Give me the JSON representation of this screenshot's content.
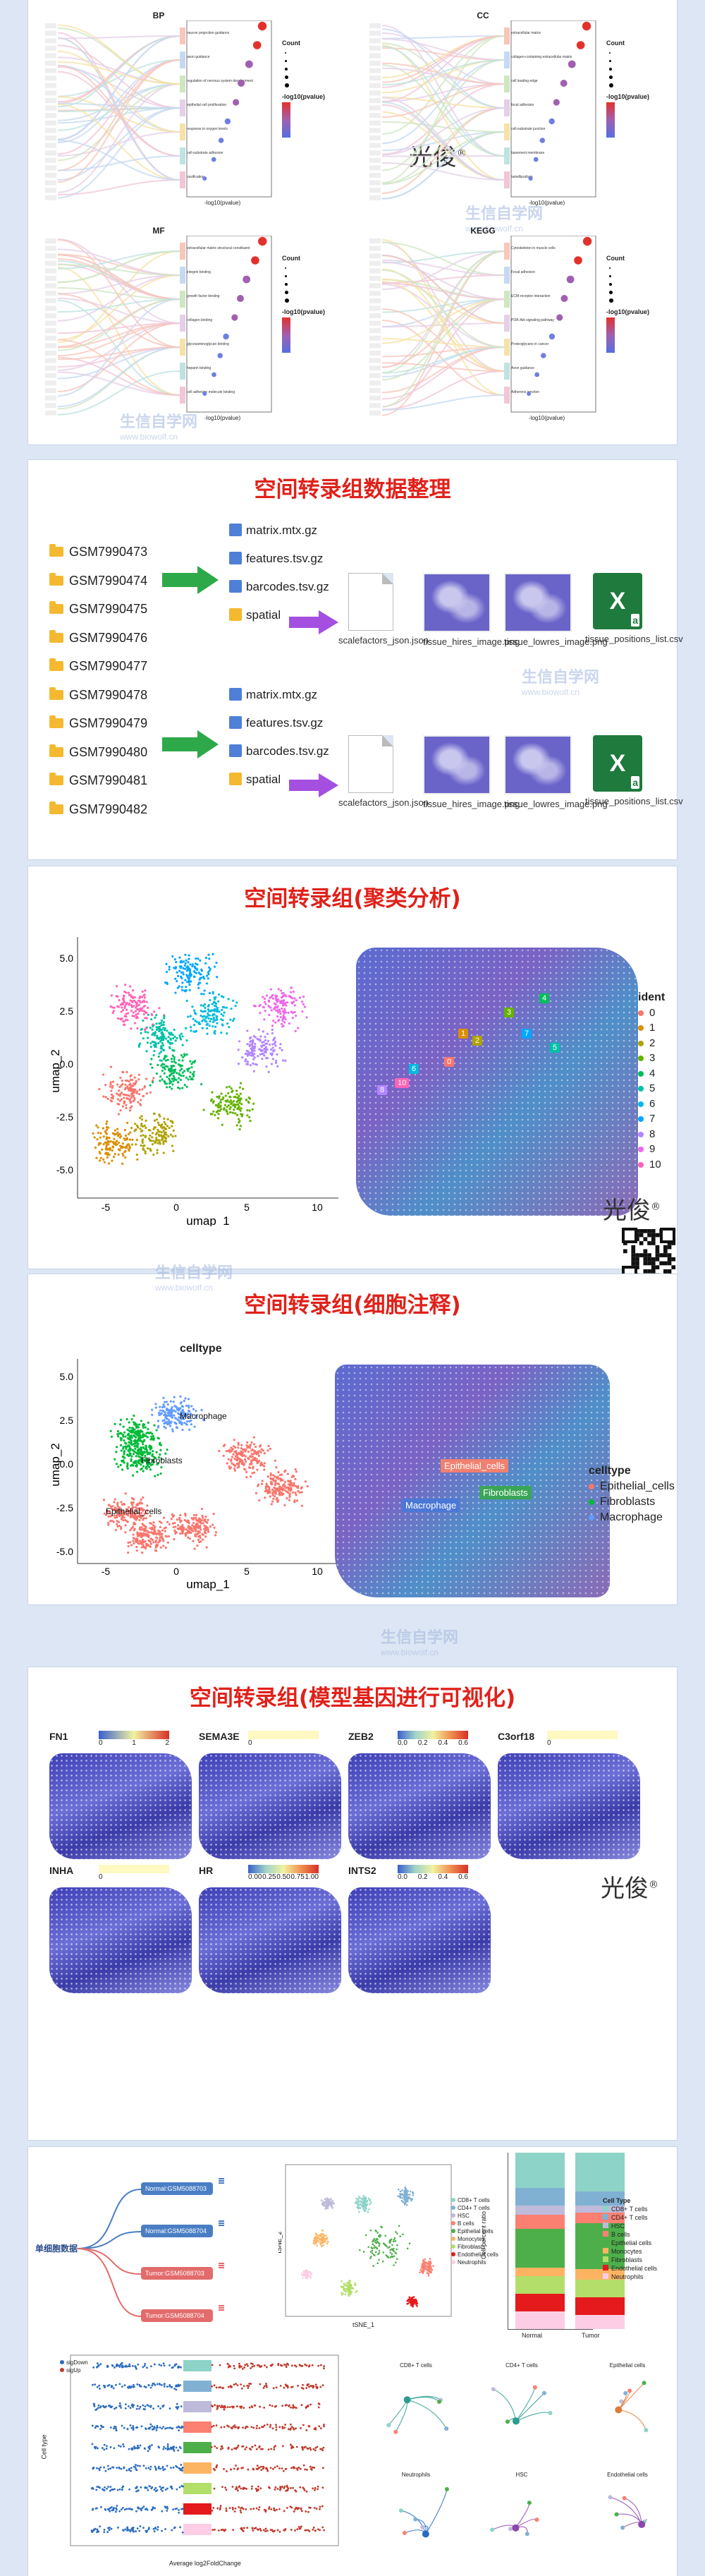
{
  "enrichment": {
    "panels": [
      {
        "id": "bp",
        "label": "BP",
        "terms": [
          "neuron projection guidance",
          "axon guidance",
          "regulation of nervous system development",
          "epithelial cell proliferation",
          "response to oxygen levels",
          "cell-substrate adhesion",
          "ossification"
        ]
      },
      {
        "id": "cc",
        "label": "CC",
        "terms": [
          "extracellular matrix",
          "collagen-containing extracellular matrix",
          "cell leading edge",
          "focal adhesion",
          "cell-substrate junction",
          "basement membrane",
          "lamellipodium"
        ]
      },
      {
        "id": "mf",
        "label": "MF",
        "terms": [
          "extracellular matrix structural constituent",
          "integrin binding",
          "growth factor binding",
          "collagen binding",
          "glycosaminoglycan binding",
          "heparin binding",
          "cell adhesion molecule binding"
        ]
      },
      {
        "id": "kegg",
        "label": "KEGG",
        "terms": [
          "Cytoskeleton in muscle cells",
          "Focal adhesion",
          "ECM-receptor interaction",
          "PI3K-Akt signaling pathway",
          "Proteoglycans in cancer",
          "Axon guidance",
          "Adherens junction"
        ]
      }
    ],
    "legend_count": "Count",
    "legend_p": "-log10(pvalue)",
    "xlabel": "-log10(pvalue)"
  },
  "watermark": {
    "name": "生信自学网",
    "url": "www.biowolf.cn"
  },
  "signature": {
    "text": "光俊",
    "mark": "®"
  },
  "section_data": {
    "title": "空间转录组数据整理",
    "samples": [
      "GSM7990473",
      "GSM7990474",
      "GSM7990475",
      "GSM7990476",
      "GSM7990477",
      "GSM7990478",
      "GSM7990479",
      "GSM7990480",
      "GSM7990481",
      "GSM7990482"
    ],
    "files": [
      "matrix.mtx.gz",
      "features.tsv.gz",
      "barcodes.tsv.gz",
      "spatial"
    ],
    "spatial_files": [
      "scalefactors_json.json",
      "tissue_hires_image.png",
      "tissue_lowres_image.png",
      "tissue_positions_list.csv"
    ],
    "xls_badge": "a"
  },
  "section_cluster": {
    "title": "空间转录组(聚类分析)",
    "xlabel": "umap_1",
    "ylabel": "umap_2",
    "xticks": [
      "-5",
      "0",
      "5",
      "10"
    ],
    "yticks": [
      "5.0",
      "2.5",
      "0.0",
      "-2.5",
      "-5.0"
    ],
    "legend_title": "ident",
    "idents": [
      "0",
      "1",
      "2",
      "3",
      "4",
      "5",
      "6",
      "7",
      "8",
      "9",
      "10"
    ],
    "ident_colors": [
      "#f8766d",
      "#db8e00",
      "#aea200",
      "#64b200",
      "#00bd5c",
      "#00c1a7",
      "#00bade",
      "#00a6ff",
      "#b385ff",
      "#ef67eb",
      "#ff63b6"
    ]
  },
  "section_celltype": {
    "title": "空间转录组(细胞注释)",
    "plot_title": "celltype",
    "xlabel": "umap_1",
    "ylabel": "umap_2",
    "xticks": [
      "-5",
      "0",
      "5",
      "10"
    ],
    "yticks": [
      "5.0",
      "2.5",
      "0.0",
      "-2.5",
      "-5.0"
    ],
    "legend_title": "celltype",
    "types": [
      "Epithelial_cells",
      "Fibroblasts",
      "Macrophage"
    ],
    "type_colors": [
      "#f8766d",
      "#00ba38",
      "#619cff"
    ],
    "labels": [
      "Macrophage",
      "Fibroblasts",
      "Epithelial_cells"
    ]
  },
  "section_genes": {
    "title": "空间转录组(模型基因进行可视化)",
    "genes": [
      {
        "name": "FN1",
        "scale": [
          "0",
          "1",
          "2"
        ]
      },
      {
        "name": "SEMA3E",
        "scale": [
          "0"
        ]
      },
      {
        "name": "ZEB2",
        "scale": [
          "0.0",
          "0.2",
          "0.4",
          "0.6"
        ]
      },
      {
        "name": "C3orf18",
        "scale": [
          "0"
        ]
      },
      {
        "name": "INHA",
        "scale": [
          "0"
        ]
      },
      {
        "name": "HR",
        "scale": [
          "0.00",
          "0.25",
          "0.50",
          "0.75",
          "1.00"
        ]
      },
      {
        "name": "INTS2",
        "scale": [
          "0.0",
          "0.2",
          "0.4",
          "0.6"
        ]
      }
    ]
  },
  "section_singlecell": {
    "root_label": "单细胞数据",
    "groups": [
      "Normal:GSM5088703",
      "Normal:GSM5088704",
      "Tumor:GSM5088703",
      "Tumor:GSM5088704"
    ],
    "tsne_x": "tSNE_1",
    "tsne_y": "tSNE_2",
    "bar_ylabel": "Cell percent ratio",
    "bar_x": [
      "Normal",
      "Tumor"
    ],
    "cell_type_title": "Cell Type",
    "cell_types": [
      "CD8+ T cells",
      "CD4+ T cells",
      "HSC",
      "B cells",
      "Epithelial cells",
      "Monocytes",
      "Fibroblasts",
      "Endothelial cells",
      "Neutrophils"
    ],
    "cell_type_colors": [
      "#8dd3c7",
      "#80b1d3",
      "#bebada",
      "#fb8072",
      "#4daf4a",
      "#fdb462",
      "#b3de69",
      "#e41a1c",
      "#fccde5"
    ],
    "volcano_legend": [
      "sigDown",
      "sigUp"
    ],
    "volcano_xlabel": "Average log2FoldChange",
    "volcano_ylabel": "Cell type",
    "network_titles": [
      "CD8+ T cells",
      "CD4+ T cells",
      "Epithelial cells",
      "Neutrophils",
      "HSC",
      "Endothelial cells"
    ]
  }
}
